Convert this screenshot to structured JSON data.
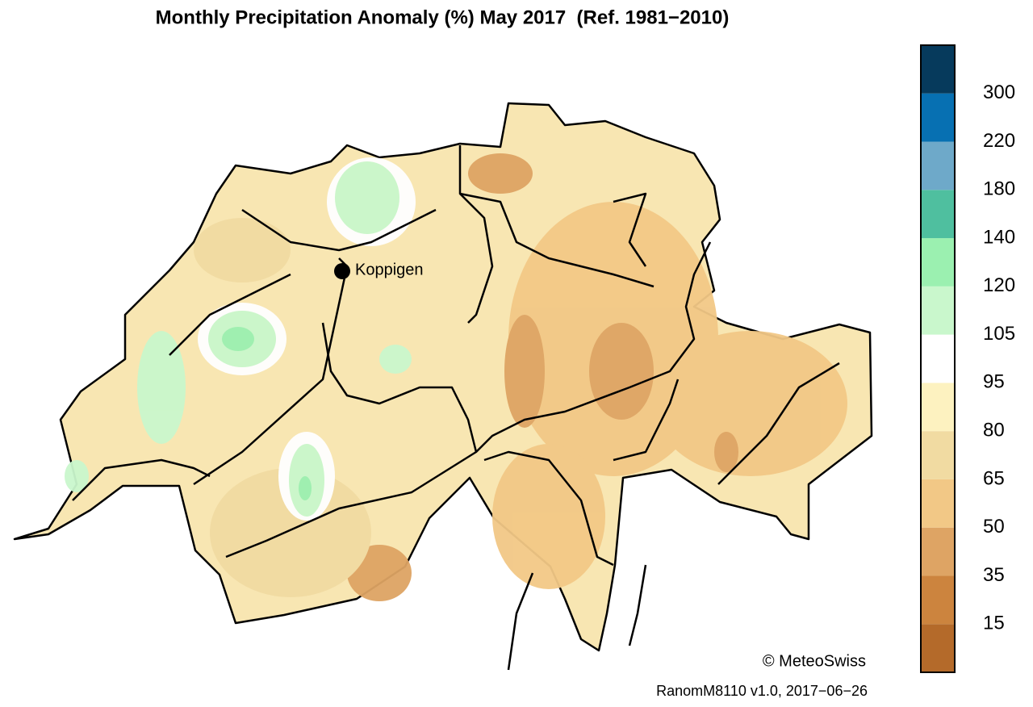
{
  "title": "Monthly Precipitation Anomaly (%) May 2017  (Ref. 1981−2010)",
  "place": {
    "label": "Koppigen"
  },
  "credit": "© MeteoSwiss",
  "footer": "RanomM8110 v1.0, 2017−06−26",
  "colorbar": {
    "colors": [
      "#b46a2a",
      "#cc843e",
      "#dea464",
      "#f2c886",
      "#f1dba2",
      "#fdf2c0",
      "#ffffff",
      "#c9f7cc",
      "#9bf0b0",
      "#4fbf9f",
      "#6ea9c9",
      "#0770b2",
      "#063a5c"
    ],
    "ticks": [
      15,
      35,
      50,
      65,
      80,
      95,
      105,
      120,
      140,
      180,
      220,
      300
    ]
  }
}
